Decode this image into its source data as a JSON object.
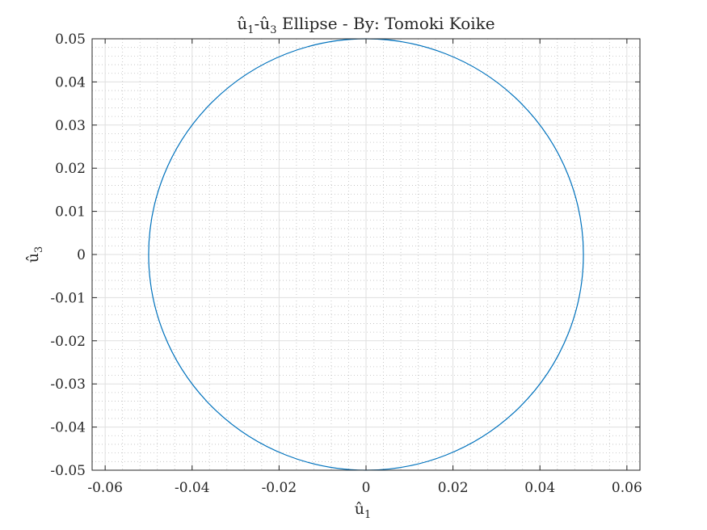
{
  "chart_data": {
    "type": "line",
    "title": "û₁-û₃ Ellipse - By: Tomoki Koike",
    "title_parts": {
      "v1": "û",
      "s1": "1",
      "sep": "-",
      "v2": "û",
      "s2": "3",
      "rest": " Ellipse - By: Tomoki Koike"
    },
    "xlabel": "û₁",
    "xlabel_parts": {
      "v": "û",
      "s": "1"
    },
    "ylabel": "û₃",
    "ylabel_parts": {
      "v": "û",
      "s": "3"
    },
    "xlim": [
      -0.063,
      0.063
    ],
    "ylim": [
      -0.05,
      0.05
    ],
    "xticks": [
      -0.06,
      -0.04,
      -0.02,
      0,
      0.02,
      0.04,
      0.06
    ],
    "xtick_labels": [
      "-0.06",
      "-0.04",
      "-0.02",
      "0",
      "0.02",
      "0.04",
      "0.06"
    ],
    "yticks": [
      -0.05,
      -0.04,
      -0.03,
      -0.02,
      -0.01,
      0,
      0.01,
      0.02,
      0.03,
      0.04,
      0.05
    ],
    "ytick_labels": [
      "-0.05",
      "-0.04",
      "-0.03",
      "-0.02",
      "-0.01",
      "0",
      "0.01",
      "0.02",
      "0.03",
      "0.04",
      "0.05"
    ],
    "grid": true,
    "minor_grid": true,
    "series": [
      {
        "shape": "ellipse",
        "center": [
          0,
          0
        ],
        "semi_axis_u1": 0.05,
        "semi_axis_u3": 0.05,
        "color": "#0072BD"
      }
    ]
  },
  "colors": {
    "line": "#0072BD",
    "axes": "#262626",
    "major_grid": "#dfdfdf",
    "minor_grid": "#bdbdbd",
    "background": "#ffffff"
  }
}
